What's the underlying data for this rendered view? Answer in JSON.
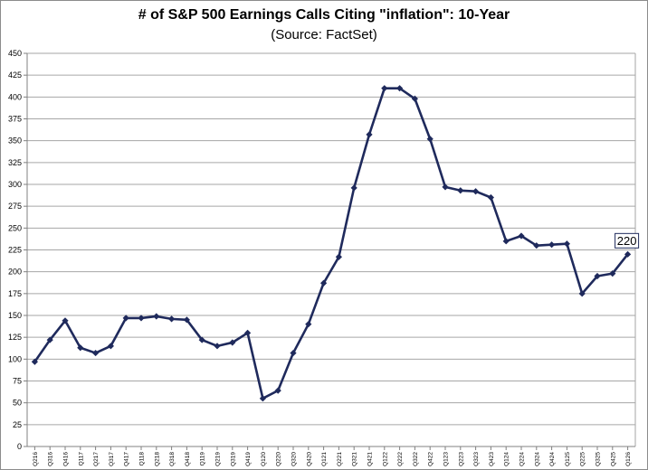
{
  "chart_data": {
    "type": "line",
    "title": "# of S&P 500 Earnings Calls Citing \"inflation\": 10-Year",
    "subtitle": "(Source: FactSet)",
    "xlabel": "",
    "ylabel": "",
    "ylim": [
      0,
      450
    ],
    "ytick_step": 25,
    "grid": true,
    "line_color": "#1f2a5c",
    "grid_color": "#a6a6a6",
    "categories": [
      "Q216",
      "Q316",
      "Q416",
      "Q117",
      "Q217",
      "Q317",
      "Q417",
      "Q118",
      "Q218",
      "Q318",
      "Q418",
      "Q119",
      "Q219",
      "Q319",
      "Q419",
      "Q120",
      "Q220",
      "Q320",
      "Q420",
      "Q121",
      "Q221",
      "Q321",
      "Q421",
      "Q122",
      "Q222",
      "Q322",
      "Q422",
      "Q123",
      "Q223",
      "Q323",
      "Q423",
      "Q124",
      "Q224",
      "Q324",
      "Q424",
      "Q125",
      "Q225",
      "Q325",
      "Q425",
      "Q126"
    ],
    "series": [
      {
        "values": [
          97,
          122,
          144,
          113,
          107,
          115,
          147,
          147,
          149,
          146,
          145,
          122,
          115,
          119,
          130,
          55,
          64,
          107,
          140,
          187,
          217,
          296,
          357,
          410,
          410,
          398,
          352,
          297,
          293,
          292,
          285,
          235,
          241,
          230,
          231,
          232,
          175,
          195,
          198,
          220
        ]
      }
    ],
    "annotation": {
      "category": "Q126",
      "text": "220"
    }
  }
}
